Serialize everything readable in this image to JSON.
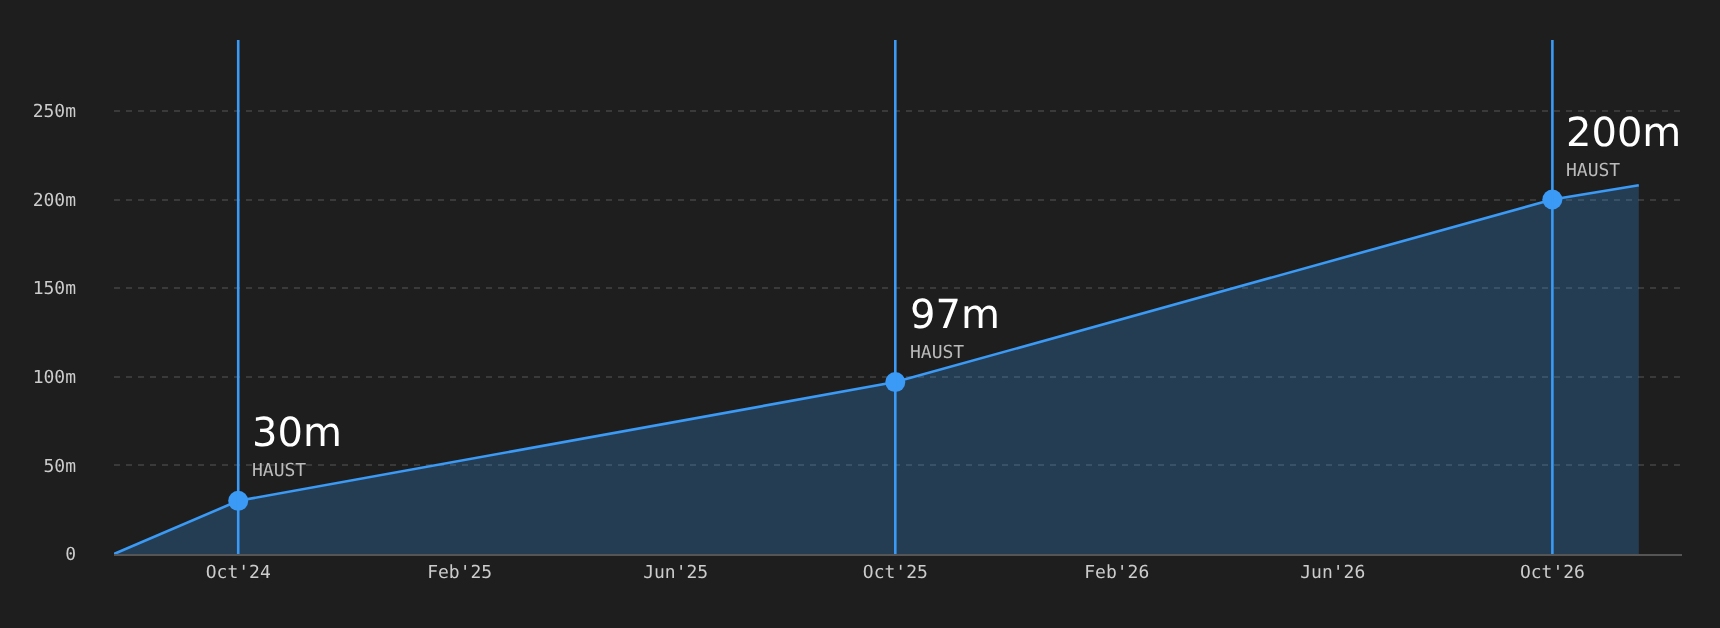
{
  "chart_data": {
    "type": "area",
    "xlim": [
      "2024-07-24",
      "2026-12-12"
    ],
    "xticks": [
      {
        "value": "2024-10-01",
        "label": "Oct'24"
      },
      {
        "value": "2025-02-01",
        "label": "Feb'25"
      },
      {
        "value": "2025-06-01",
        "label": "Jun'25"
      },
      {
        "value": "2025-10-01",
        "label": "Oct'25"
      },
      {
        "value": "2026-02-01",
        "label": "Feb'26"
      },
      {
        "value": "2026-06-01",
        "label": "Jun'26"
      },
      {
        "value": "2026-10-01",
        "label": "Oct'26"
      }
    ],
    "ylim": [
      0,
      290
    ],
    "yticks": [
      {
        "value": 0,
        "label": "0"
      },
      {
        "value": 50,
        "label": "50m"
      },
      {
        "value": 100,
        "label": "100m"
      },
      {
        "value": 150,
        "label": "150m"
      },
      {
        "value": 200,
        "label": "200m"
      },
      {
        "value": 250,
        "label": "250m"
      }
    ],
    "grid": "y",
    "series": [
      {
        "color": "#3a9af5",
        "marker": "none",
        "x": [
          "2024-07-24",
          "2024-10-01",
          "2025-10-01",
          "2026-10-01",
          "2026-11-18"
        ],
        "values": [
          0,
          30,
          97,
          200,
          208
        ]
      },
      {
        "type": "scatter",
        "color": "#3a9af5",
        "marker": "circle",
        "x": [
          "2024-10-01",
          "2025-10-01",
          "2026-10-01"
        ],
        "values": [
          30,
          97,
          200
        ],
        "value_labels": [
          "30m",
          "97m",
          "200m"
        ]
      }
    ],
    "ref_lines": [
      {
        "axis": "x",
        "value": "2024-10-01",
        "color": "#3a9af5"
      },
      {
        "axis": "x",
        "value": "2025-10-01",
        "color": "#3a9af5"
      },
      {
        "axis": "x",
        "value": "2026-10-01",
        "color": "#3a9af5"
      }
    ],
    "annotations": [
      {
        "text": "HAUST",
        "x": "2024-10-01",
        "y": 30
      },
      {
        "text": "HAUST",
        "x": "2025-10-01",
        "y": 97
      },
      {
        "text": "HAUST",
        "x": "2026-10-01",
        "y": 200
      }
    ]
  }
}
